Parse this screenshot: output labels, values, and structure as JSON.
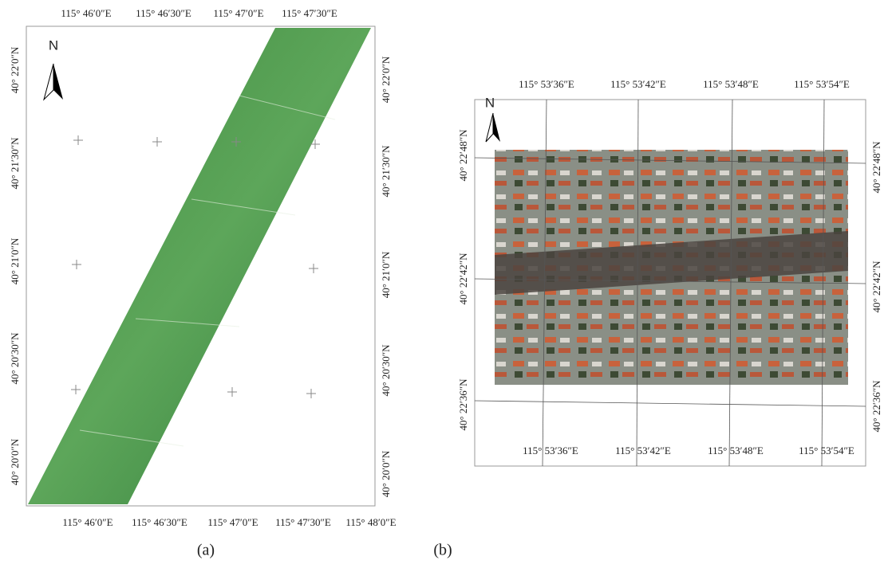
{
  "panels": [
    {
      "caption": "(a)",
      "north": "N",
      "top_labels": [
        "115° 46′0″E",
        "115° 46′30″E",
        "115° 47′0″E",
        "115° 47′30″E"
      ],
      "bottom_labels": [
        "115° 46′0″E",
        "115° 46′30″E",
        "115° 47′0″E",
        "115° 47′30″E",
        "115° 48′0″E"
      ],
      "left_labels": [
        "40° 22′0″N",
        "40° 21′30″N",
        "40° 21′0″N",
        "40° 20′30″N",
        "40° 20′0″N"
      ],
      "right_labels": [
        "40° 22′0″N",
        "40° 21′30″N",
        "40° 21′0″N",
        "40° 20′30″N",
        "40° 20′0″N"
      ]
    },
    {
      "caption": "(b)",
      "north": "N",
      "top_labels": [
        "115° 53′36″E",
        "115° 53′42″E",
        "115° 53′48″E",
        "115° 53′54″E"
      ],
      "bottom_labels": [
        "115° 53′36″E",
        "115° 53′42″E",
        "115° 53′48″E",
        "115° 53′54″E"
      ],
      "left_labels": [
        "40° 22′48″N",
        "40° 22′42″N",
        "40° 22′36″N"
      ],
      "right_labels": [
        "40° 22′48″N",
        "40° 22′42″N",
        "40° 22′36″N"
      ]
    }
  ]
}
